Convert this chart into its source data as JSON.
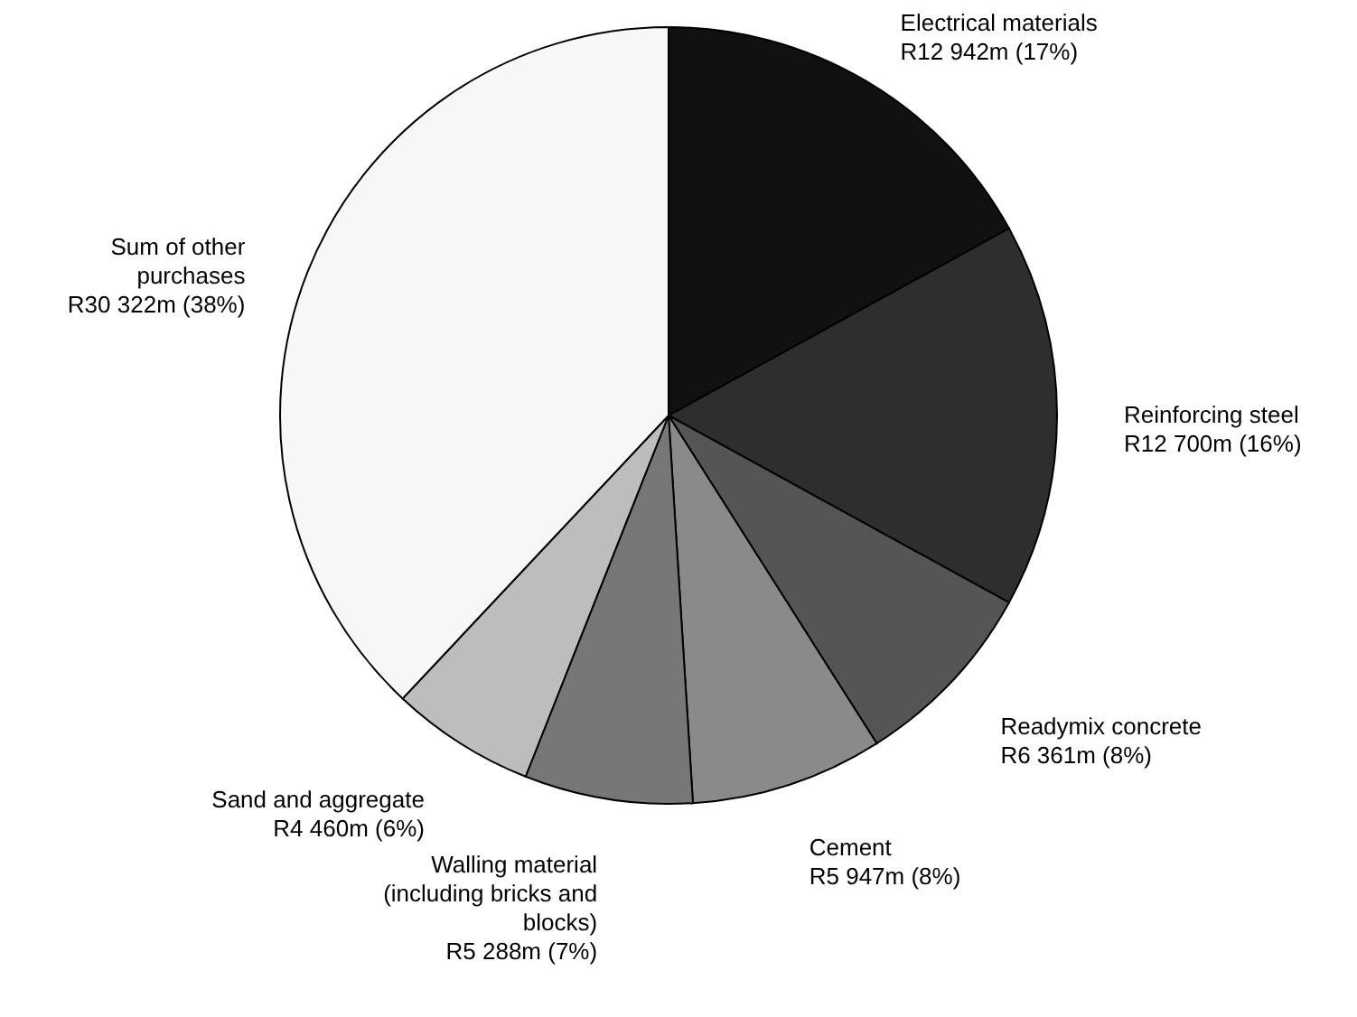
{
  "chart_data": {
    "type": "pie",
    "categories": [
      "Electrical materials",
      "Reinforcing steel",
      "Readymix concrete",
      "Cement",
      "Walling material\n(including bricks and\nblocks)",
      "Sand and aggregate",
      "Sum of other\npurchases"
    ],
    "values": [
      17,
      16,
      8,
      8,
      7,
      6,
      38
    ],
    "value_labels": [
      "R12 942m (17%)",
      "R12 700m (16%)",
      "R6 361m (8%)",
      "R5 947m (8%)",
      "R5 288m (7%)",
      "R4 460m (6%)",
      "R30 322m (38%)"
    ],
    "colors": [
      "#111111",
      "#2e2e2e",
      "#555555",
      "#8a8a8a",
      "#777777",
      "#bdbdbd",
      "#f7f7f7"
    ]
  }
}
